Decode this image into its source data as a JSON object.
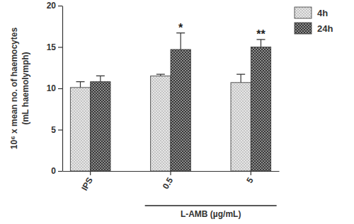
{
  "chart_data": {
    "type": "bar",
    "ylabel": [
      "10⁶ x mean no. of haemocytes",
      "(mL haemolymph)"
    ],
    "xlabel": "L-AMB (µg/mL)",
    "categories": [
      "IPS",
      "0.5",
      "5"
    ],
    "series": [
      {
        "name": "4h",
        "color": "#e6e6e6",
        "values": [
          10.1,
          11.5,
          10.7
        ],
        "errors": [
          0.7,
          0.2,
          1.0
        ]
      },
      {
        "name": "24h",
        "color": "#8c8c8c",
        "values": [
          10.8,
          14.7,
          15.0
        ],
        "errors": [
          0.7,
          2.0,
          0.9
        ],
        "annotations": [
          null,
          "*",
          "**"
        ]
      }
    ],
    "ylim": [
      0,
      20
    ],
    "yticks": [
      0,
      5,
      10,
      15,
      20
    ],
    "grid": false,
    "legend": "upper right"
  }
}
